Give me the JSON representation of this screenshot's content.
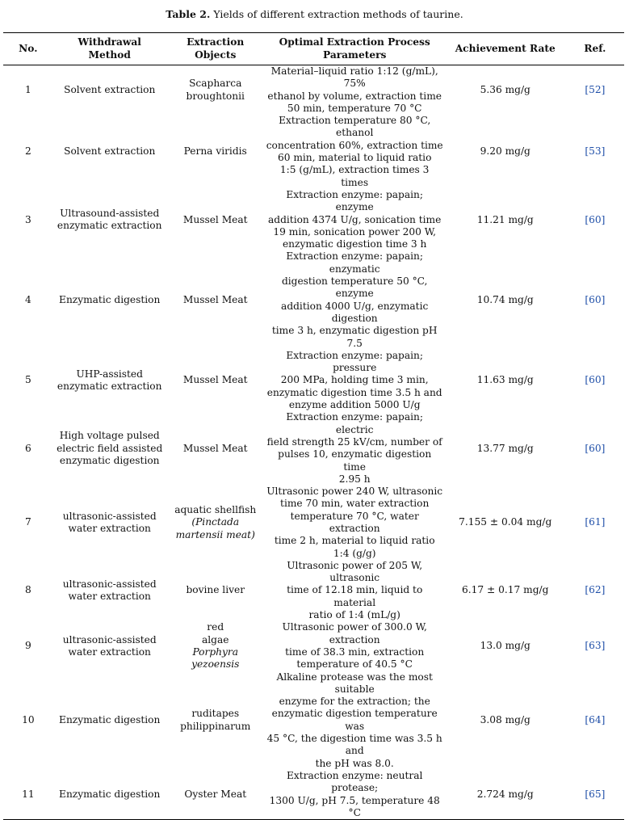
{
  "caption": {
    "label": "Table 2.",
    "text": "Yields of different extraction methods of taurine."
  },
  "headers": {
    "no": "No.",
    "method": [
      "Withdrawal",
      "Method"
    ],
    "objects": "Extraction Objects",
    "params": [
      "Optimal Extraction Process",
      "Parameters"
    ],
    "rate": "Achievement Rate",
    "ref": "Ref."
  },
  "rows": [
    {
      "no": "1",
      "method": [
        "Solvent extraction"
      ],
      "objects": [
        "Scapharca",
        "broughtonii"
      ],
      "params": [
        "Material–liquid ratio 1:12 (g/mL), 75%",
        "ethanol by volume, extraction time",
        "50 min, temperature 70 °C"
      ],
      "rate": "5.36 mg/g",
      "ref": "[52]"
    },
    {
      "no": "2",
      "method": [
        "Solvent extraction"
      ],
      "objects": [
        "Perna viridis"
      ],
      "params": [
        "Extraction temperature 80 °C, ethanol",
        "concentration 60%, extraction time",
        "60 min, material to liquid ratio",
        "1:5 (g/mL), extraction times 3 times"
      ],
      "rate": "9.20 mg/g",
      "ref": "[53]"
    },
    {
      "no": "3",
      "method": [
        "Ultrasound-assisted",
        "enzymatic extraction"
      ],
      "objects": [
        "Mussel Meat"
      ],
      "params": [
        "Extraction enzyme: papain; enzyme",
        "addition 4374 U/g, sonication time",
        "19 min, sonication power 200 W,",
        "enzymatic digestion time 3 h"
      ],
      "rate": "11.21 mg/g",
      "ref": "[60]"
    },
    {
      "no": "4",
      "method": [
        "Enzymatic digestion"
      ],
      "objects": [
        "Mussel Meat"
      ],
      "params": [
        "Extraction enzyme: papain; enzymatic",
        "digestion temperature 50 °C, enzyme",
        "addition 4000 U/g, enzymatic digestion",
        "time 3 h, enzymatic digestion pH 7.5"
      ],
      "rate": "10.74 mg/g",
      "ref": "[60]"
    },
    {
      "no": "5",
      "method": [
        "UHP-assisted",
        "enzymatic extraction"
      ],
      "objects": [
        "Mussel Meat"
      ],
      "params": [
        "Extraction enzyme: papain; pressure",
        "200 MPa, holding time 3 min,",
        "enzymatic digestion time 3.5 h and",
        "enzyme addition 5000 U/g"
      ],
      "rate": "11.63 mg/g",
      "ref": "[60]"
    },
    {
      "no": "6",
      "method": [
        "High voltage pulsed",
        "electric field assisted",
        "enzymatic digestion"
      ],
      "objects": [
        "Mussel Meat"
      ],
      "params": [
        "Extraction enzyme: papain; electric",
        "field strength 25 kV/cm, number of",
        "pulses 10, enzymatic digestion time",
        "2.95 h"
      ],
      "rate": "13.77 mg/g",
      "ref": "[60]"
    },
    {
      "no": "7",
      "method": [
        "ultrasonic-assisted",
        "water extraction"
      ],
      "objects": [
        "aquatic shellfish",
        "(Pinctada",
        "martensii meat)"
      ],
      "params": [
        "Ultrasonic power 240 W, ultrasonic",
        "time 70 min, water extraction",
        "temperature 70 °C, water extraction",
        "time 2 h, material to liquid ratio",
        "1:4 (g/g)"
      ],
      "rate": "7.155 ± 0.04 mg/g",
      "ref": "[61]"
    },
    {
      "no": "8",
      "method": [
        "ultrasonic-assisted",
        "water extraction"
      ],
      "objects": [
        "bovine liver"
      ],
      "params": [
        "Ultrasonic power of 205 W, ultrasonic",
        "time of 12.18 min, liquid to material",
        "ratio of 1:4 (mL/g)"
      ],
      "rate": "6.17 ± 0.17 mg/g",
      "ref": "[62]"
    },
    {
      "no": "9",
      "method": [
        "ultrasonic-assisted",
        "water extraction"
      ],
      "objects": [
        "red",
        "algae",
        "Porphyra yezoensis"
      ],
      "params": [
        "Ultrasonic power of 300.0 W, extraction",
        "time of 38.3 min, extraction",
        "temperature of 40.5 °C"
      ],
      "rate": "13.0 mg/g",
      "ref": "[63]"
    },
    {
      "no": "10",
      "method": [
        "Enzymatic digestion"
      ],
      "objects": [
        "ruditapes",
        "philippinarum"
      ],
      "params": [
        "Alkaline protease was the most suitable",
        "enzyme for the extraction; the",
        "enzymatic digestion temperature was",
        "45 °C, the digestion time was 3.5 h and",
        "the pH was 8.0."
      ],
      "rate": "3.08 mg/g",
      "ref": "[64]"
    },
    {
      "no": "11",
      "method": [
        "Enzymatic digestion"
      ],
      "objects": [
        "Oyster Meat"
      ],
      "params": [
        "Extraction enzyme: neutral protease;",
        "1300 U/g, pH 7.5, temperature 48 °C"
      ],
      "rate": "2.724 mg/g",
      "ref": "[65]"
    }
  ]
}
